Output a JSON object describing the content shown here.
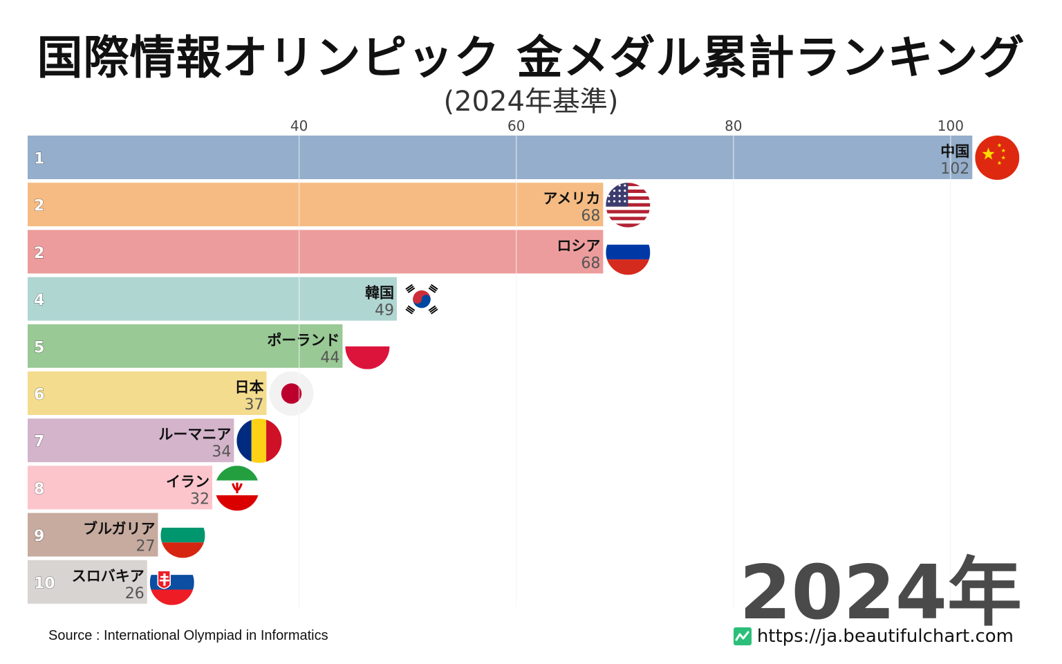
{
  "title": "国際情報オリンピック 金メダル累計ランキング",
  "subtitle": "(2024年基準)",
  "year": "2024年",
  "source": "Source : International Olympiad in Informatics",
  "site": "https://ja.beautifulchart.com",
  "chart_data": {
    "type": "bar",
    "orientation": "horizontal",
    "xticks": [
      40,
      60,
      80,
      100
    ],
    "xlim": [
      15,
      103
    ],
    "grid": true,
    "bars": [
      {
        "rank": "1",
        "name": "中国",
        "value": 102,
        "color": "#94aecb",
        "flag": "china-flag-icon"
      },
      {
        "rank": "2",
        "name": "アメリカ",
        "value": 68,
        "color": "#f5bb82",
        "flag": "usa-flag-icon"
      },
      {
        "rank": "2",
        "name": "ロシア",
        "value": 68,
        "color": "#ec9c9c",
        "flag": "russia-flag-icon"
      },
      {
        "rank": "4",
        "name": "韓国",
        "value": 49,
        "color": "#b0d6d2",
        "flag": "south-korea-flag-icon"
      },
      {
        "rank": "5",
        "name": "ポーランド",
        "value": 44,
        "color": "#99c995",
        "flag": "poland-flag-icon"
      },
      {
        "rank": "6",
        "name": "日本",
        "value": 37,
        "color": "#f3dc8e",
        "flag": "japan-flag-icon"
      },
      {
        "rank": "7",
        "name": "ルーマニア",
        "value": 34,
        "color": "#d3b4cb",
        "flag": "romania-flag-icon"
      },
      {
        "rank": "8",
        "name": "イラン",
        "value": 32,
        "color": "#fcc5cc",
        "flag": "iran-flag-icon"
      },
      {
        "rank": "9",
        "name": "ブルガリア",
        "value": 27,
        "color": "#c7ab9f",
        "flag": "bulgaria-flag-icon"
      },
      {
        "rank": "10",
        "name": "スロバキア",
        "value": 26,
        "color": "#d8d4d1",
        "flag": "slovakia-flag-icon"
      }
    ]
  }
}
